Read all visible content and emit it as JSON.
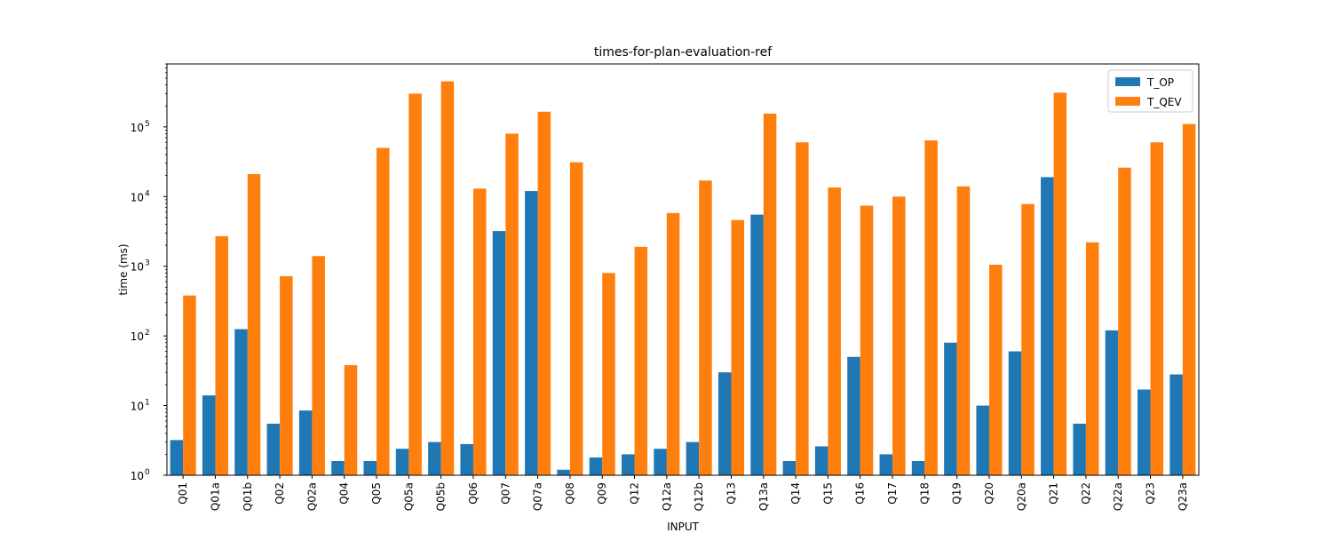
{
  "chart_data": {
    "type": "bar",
    "title": "times-for-plan-evaluation-ref",
    "xlabel": "INPUT",
    "ylabel": "time (ms)",
    "yscale": "log",
    "ylim": [
      1,
      800000
    ],
    "grid": false,
    "legend_position": "top-right",
    "categories": [
      "Q01",
      "Q01a",
      "Q01b",
      "Q02",
      "Q02a",
      "Q04",
      "Q05",
      "Q05a",
      "Q05b",
      "Q06",
      "Q07",
      "Q07a",
      "Q08",
      "Q09",
      "Q12",
      "Q12a",
      "Q12b",
      "Q13",
      "Q13a",
      "Q14",
      "Q15",
      "Q16",
      "Q17",
      "Q18",
      "Q19",
      "Q20",
      "Q20a",
      "Q21",
      "Q22",
      "Q22a",
      "Q23",
      "Q23a"
    ],
    "y_ticks": [
      {
        "value": 1,
        "base": "10",
        "exp": "0"
      },
      {
        "value": 10,
        "base": "10",
        "exp": "1"
      },
      {
        "value": 100,
        "base": "10",
        "exp": "2"
      },
      {
        "value": 1000,
        "base": "10",
        "exp": "3"
      },
      {
        "value": 10000,
        "base": "10",
        "exp": "4"
      },
      {
        "value": 100000,
        "base": "10",
        "exp": "5"
      }
    ],
    "series": [
      {
        "name": "T_OP",
        "color": "#1f77b4",
        "values": [
          3.2,
          14,
          125,
          5.5,
          8.5,
          1.6,
          1.6,
          2.4,
          3.0,
          2.8,
          3200,
          12000,
          1.2,
          1.8,
          2.0,
          2.4,
          3.0,
          30,
          5500,
          1.6,
          2.6,
          50,
          2.0,
          1.6,
          80,
          10,
          60,
          19000,
          5.5,
          120,
          17,
          28
        ]
      },
      {
        "name": "T_QEV",
        "color": "#ff7f0e",
        "values": [
          380,
          2700,
          21000,
          720,
          1400,
          38,
          50000,
          300000,
          450000,
          13000,
          80000,
          165000,
          31000,
          800,
          1900,
          5800,
          17000,
          4600,
          155000,
          60000,
          13500,
          7400,
          10000,
          64000,
          14000,
          1050,
          7800,
          310000,
          2200,
          26000,
          60000,
          110000
        ]
      }
    ]
  }
}
